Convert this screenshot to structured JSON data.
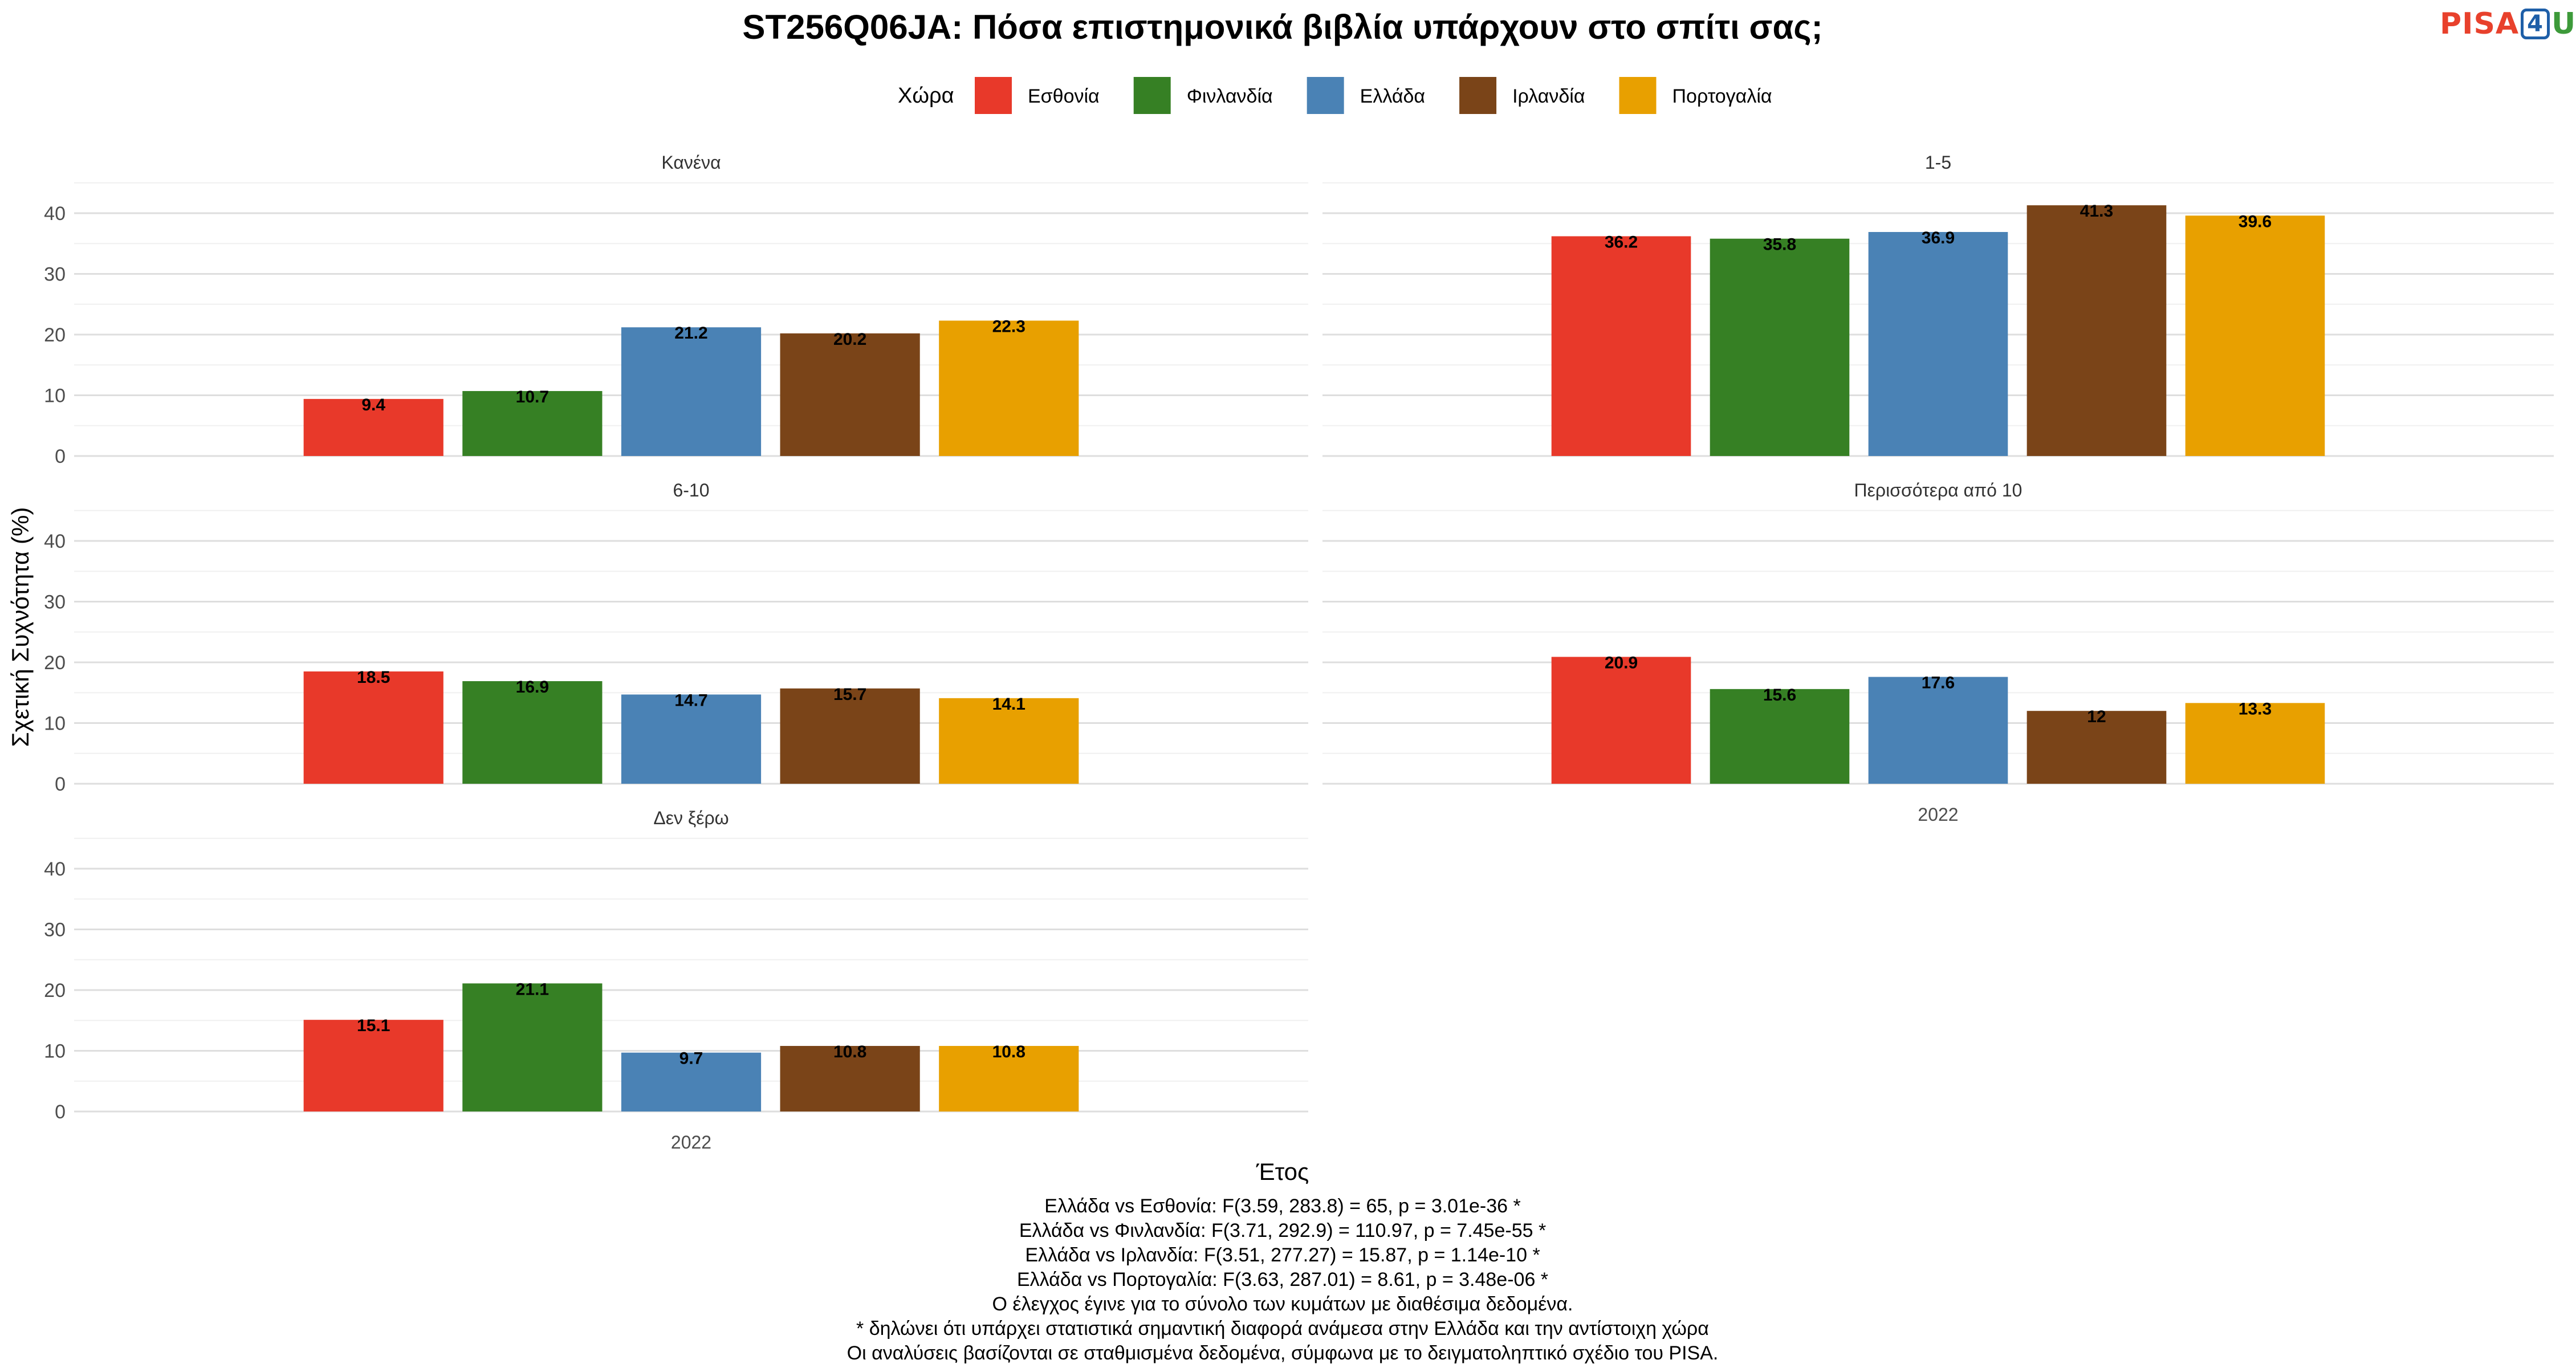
{
  "chart_data": {
    "type": "bar",
    "title": "ST256Q06JA: Πόσα επιστημονικά βιβλία υπάρχουν στο σπίτι σας;",
    "legend": {
      "title": "Χώρα",
      "position": "top",
      "items": [
        {
          "name": "Εσθονία",
          "color": "#e8392a"
        },
        {
          "name": "Φινλανδία",
          "color": "#368024"
        },
        {
          "name": "Ελλάδα",
          "color": "#4a82b5"
        },
        {
          "name": "Ιρλανδία",
          "color": "#7a4418"
        },
        {
          "name": "Πορτογαλία",
          "color": "#e8a000"
        }
      ]
    },
    "xlabel": "Έτος",
    "ylabel": "Σχετική Συχνότητα (%)",
    "ylim": [
      0,
      45
    ],
    "yticks": [
      0,
      10,
      20,
      30,
      40
    ],
    "grid": true,
    "categories": [
      "2022"
    ],
    "panels": [
      {
        "title": "Κανένα",
        "values": [
          9.4,
          10.7,
          21.2,
          20.2,
          22.3
        ],
        "labels": [
          "9.4",
          "10.7",
          "21.2",
          "20.2",
          "22.3"
        ]
      },
      {
        "title": "1-5",
        "values": [
          36.2,
          35.8,
          36.9,
          41.3,
          39.6
        ],
        "labels": [
          "36.2",
          "35.8",
          "36.9",
          "41.3",
          "39.6"
        ]
      },
      {
        "title": "6-10",
        "values": [
          18.5,
          16.9,
          14.7,
          15.7,
          14.1
        ],
        "labels": [
          "18.5",
          "16.9",
          "14.7",
          "15.7",
          "14.1"
        ]
      },
      {
        "title": "Περισσότερα από 10",
        "values": [
          20.9,
          15.6,
          17.6,
          12,
          13.3
        ],
        "labels": [
          "20.9",
          "15.6",
          "17.6",
          "12",
          "13.3"
        ]
      },
      {
        "title": "Δεν ξέρω",
        "values": [
          15.1,
          21.1,
          9.7,
          10.8,
          10.8
        ],
        "labels": [
          "15.1",
          "21.1",
          "9.7",
          "10.8",
          "10.8"
        ]
      }
    ]
  },
  "footnotes": [
    "Ελλάδα vs Εσθονία: F(3.59, 283.8) = 65, p = 3.01e-36 *",
    "Ελλάδα vs Φινλανδία: F(3.71, 292.9) = 110.97, p = 7.45e-55 *",
    "Ελλάδα vs Ιρλανδία: F(3.51, 277.27) = 15.87, p = 1.14e-10 *",
    "Ελλάδα vs Πορτογαλία: F(3.63, 287.01) = 8.61, p = 3.48e-06 *",
    "Ο έλεγχος έγινε για το σύνολο των κυμάτων με διαθέσιμα δεδομένα.",
    "* δηλώνει ότι υπάρχει στατιστικά σημαντική διαφορά ανάμεσα στην Ελλάδα και την αντίστοιχη χώρα",
    "Οι αναλύσεις βασίζονται σε σταθμισμένα δεδομένα, σύμφωνα με το δειγματοληπτικό σχέδιο του PISA."
  ],
  "logo": {
    "text": "PISA4U",
    "part1": "PISA",
    "part2": "4",
    "part3": "U"
  }
}
